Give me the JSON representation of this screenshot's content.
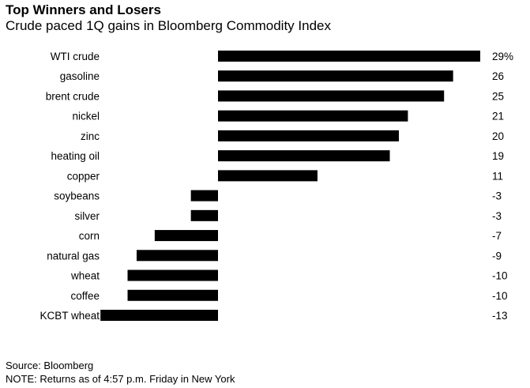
{
  "chart_data": {
    "type": "bar",
    "orientation": "horizontal",
    "title": "Top Winners and Losers",
    "subtitle": "Crude paced 1Q gains in Bloomberg Commodity Index",
    "categories": [
      "WTI crude",
      "gasoline",
      "brent crude",
      "nickel",
      "zinc",
      "heating oil",
      "copper",
      "soybeans",
      "silver",
      "corn",
      "natural gas",
      "wheat",
      "coffee",
      "KCBT wheat"
    ],
    "values": [
      29,
      26,
      25,
      21,
      20,
      19,
      11,
      -3,
      -3,
      -7,
      -9,
      -10,
      -10,
      -13
    ],
    "value_labels": [
      "29%",
      "26",
      "25",
      "21",
      "20",
      "19",
      "11",
      "-3",
      "-3",
      "-7",
      "-9",
      "-10",
      "-10",
      "-13"
    ],
    "bar_color": "#000000",
    "xlim": [
      -13,
      29
    ],
    "grid": false
  },
  "footer": {
    "source": "Source: Bloomberg",
    "note": "NOTE: Returns as of 4:57 p.m. Friday in New York"
  }
}
